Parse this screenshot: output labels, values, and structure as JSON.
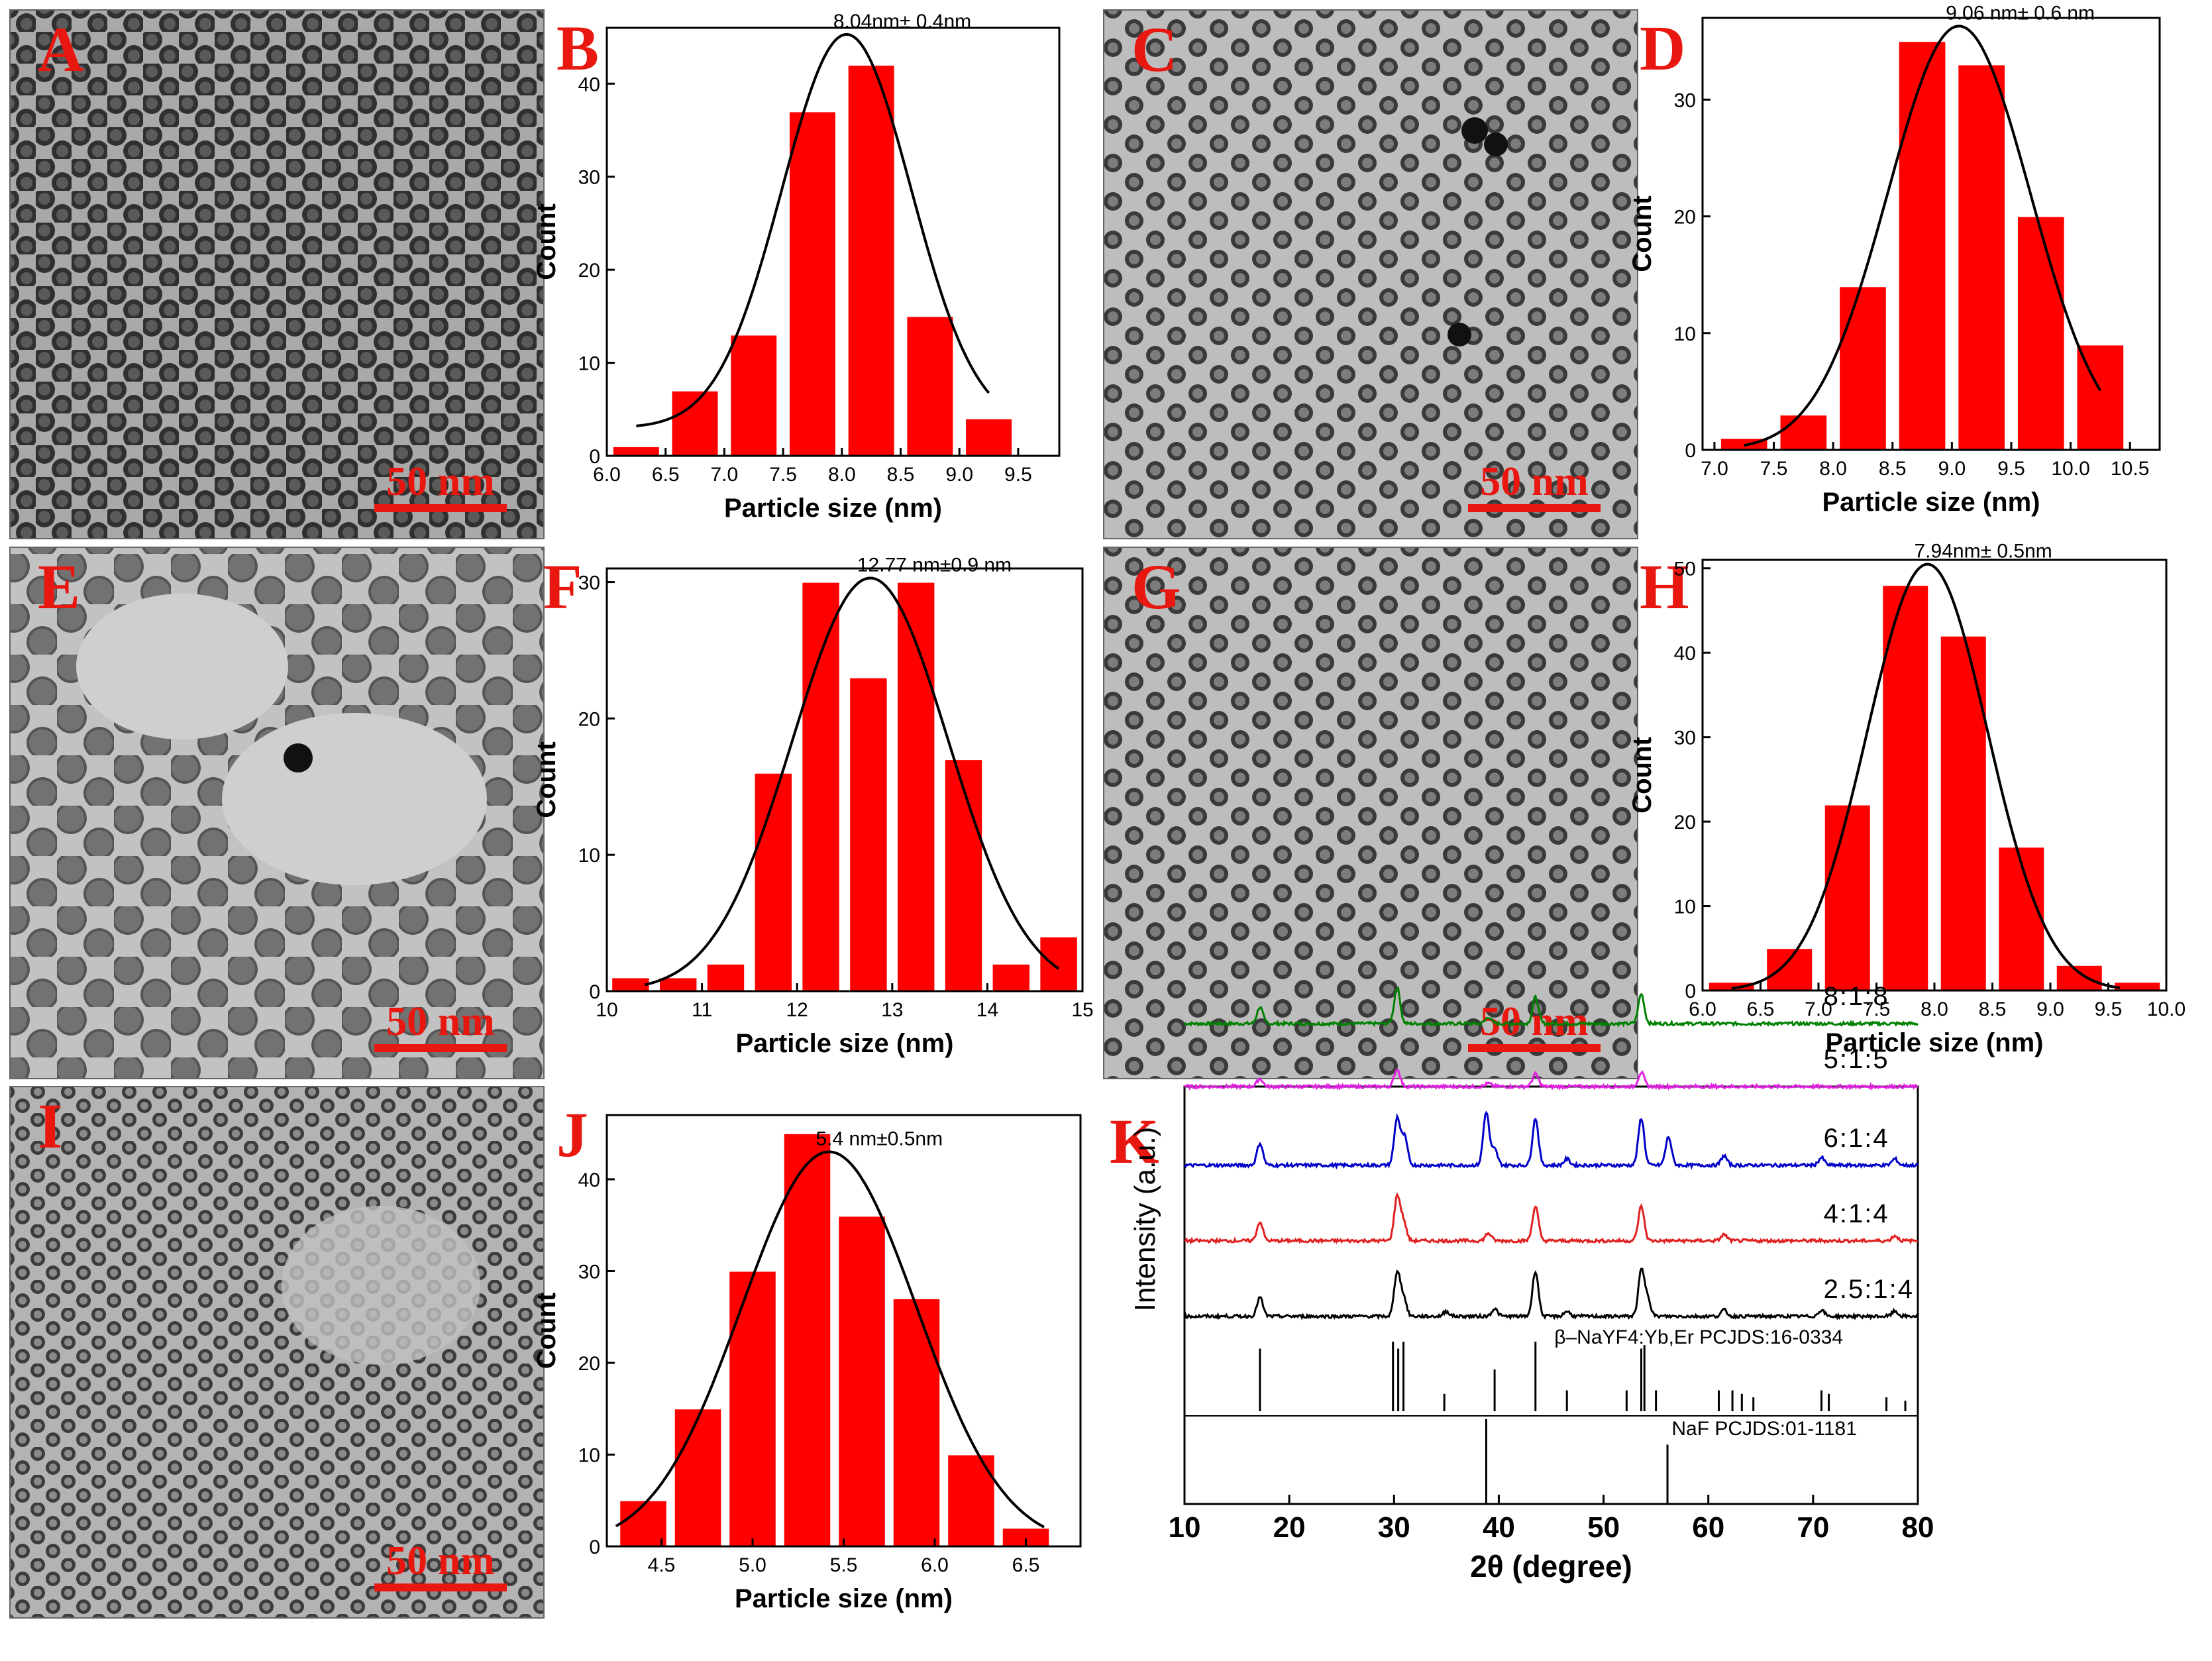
{
  "figure": {
    "tem_panels": [
      {
        "letter": "A",
        "scale_bar": "50 nm",
        "style": "dense"
      },
      {
        "letter": "C",
        "scale_bar": "50 nm",
        "style": "light"
      },
      {
        "letter": "E",
        "scale_bar": "50 nm",
        "style": "large"
      },
      {
        "letter": "G",
        "scale_bar": "50 nm",
        "style": "light"
      },
      {
        "letter": "I",
        "scale_bar": "50 nm",
        "style": "small"
      }
    ]
  },
  "colors": {
    "bar": "#ff0000",
    "fit": "#000000",
    "letter": "#e8170f"
  },
  "chart_data": [
    {
      "panel": "B",
      "type": "bar",
      "xlabel": "Particle size (nm)",
      "ylabel": "Count",
      "annotation": "8.04nm± 0.4nm",
      "xlim": [
        6.0,
        9.85
      ],
      "ylim": [
        0,
        46
      ],
      "xticks": [
        6.0,
        6.5,
        7.0,
        7.5,
        8.0,
        8.5,
        9.0,
        9.5
      ],
      "xtick_labels": [
        "6.0",
        "6.5",
        "7.0",
        "7.5",
        "8.0",
        "8.5",
        "9.0",
        "9.5"
      ],
      "yticks": [
        0,
        10,
        20,
        30,
        40
      ],
      "bin_width": 0.4,
      "bins": [
        6.25,
        6.75,
        7.25,
        7.75,
        8.25,
        8.75,
        9.25
      ],
      "values": [
        1,
        7,
        13,
        37,
        42,
        15,
        4
      ],
      "fit": {
        "type": "gaussian",
        "center": 8.04,
        "peak": 45.3,
        "sigma": 0.55,
        "baseline": 3.0,
        "range": [
          6.25,
          9.25
        ]
      }
    },
    {
      "panel": "D",
      "type": "bar",
      "xlabel": "Particle size (nm)",
      "ylabel": "Count",
      "annotation": "9.06 nm± 0.6 nm",
      "xlim": [
        6.9,
        10.75
      ],
      "ylim": [
        0,
        37
      ],
      "xticks": [
        7.0,
        7.5,
        8.0,
        8.5,
        9.0,
        9.5,
        10.0,
        10.5
      ],
      "xtick_labels": [
        "7.0",
        "7.5",
        "8.0",
        "8.5",
        "9.0",
        "9.5",
        "10.0",
        "10.5"
      ],
      "yticks": [
        0,
        10,
        20,
        30
      ],
      "bin_width": 0.4,
      "bins": [
        7.25,
        7.75,
        8.25,
        8.75,
        9.25,
        9.75,
        10.25
      ],
      "values": [
        1,
        3,
        14,
        35,
        33,
        20,
        9
      ],
      "fit": {
        "type": "gaussian",
        "center": 9.06,
        "peak": 36.3,
        "sigma": 0.6,
        "baseline": 0,
        "range": [
          7.25,
          10.25
        ]
      }
    },
    {
      "panel": "F",
      "type": "bar",
      "xlabel": "Particle size (nm)",
      "ylabel": "Count",
      "annotation": "12.77 nm±0.9 nm",
      "xlim": [
        10,
        15
      ],
      "ylim": [
        0,
        31
      ],
      "xticks": [
        10,
        11,
        12,
        13,
        14,
        15
      ],
      "xtick_labels": [
        "10",
        "11",
        "12",
        "13",
        "14",
        "15"
      ],
      "yticks": [
        0,
        10,
        20,
        30
      ],
      "bin_width": 0.4,
      "bins": [
        10.25,
        10.75,
        11.25,
        11.75,
        12.25,
        12.75,
        13.25,
        13.75,
        14.25,
        14.75
      ],
      "values": [
        1,
        1,
        2,
        16,
        30,
        23,
        30,
        17,
        2,
        4
      ],
      "fit": {
        "type": "gaussian",
        "center": 12.77,
        "peak": 30.3,
        "sigma": 0.82,
        "baseline": 0,
        "range": [
          10.4,
          14.75
        ]
      }
    },
    {
      "panel": "H",
      "type": "bar",
      "xlabel": "Particle size (nm)",
      "ylabel": "Count",
      "annotation": "7.94nm± 0.5nm",
      "xlim": [
        6.0,
        10.0
      ],
      "ylim": [
        0,
        51
      ],
      "xticks": [
        6.0,
        6.5,
        7.0,
        7.5,
        8.0,
        8.5,
        9.0,
        9.5,
        10.0
      ],
      "xtick_labels": [
        "6.0",
        "6.5",
        "7.0",
        "7.5",
        "8.0",
        "8.5",
        "9.0",
        "9.5",
        "10.0"
      ],
      "yticks": [
        0,
        10,
        20,
        30,
        40,
        50
      ],
      "bin_width": 0.4,
      "bins": [
        6.25,
        6.75,
        7.25,
        7.75,
        8.25,
        8.75,
        9.25,
        9.75
      ],
      "values": [
        1,
        5,
        22,
        48,
        42,
        17,
        3,
        1
      ],
      "fit": {
        "type": "gaussian",
        "center": 7.94,
        "peak": 50.5,
        "sigma": 0.52,
        "baseline": 0,
        "range": [
          6.25,
          9.6
        ]
      }
    },
    {
      "panel": "J",
      "type": "bar",
      "xlabel": "Particle size (nm)",
      "ylabel": "Count",
      "annotation": "5.4 nm±0.5nm",
      "xlim": [
        4.2,
        6.8
      ],
      "ylim": [
        0,
        47
      ],
      "xticks": [
        4.5,
        5.0,
        5.5,
        6.0,
        6.5
      ],
      "xtick_labels": [
        "4.5",
        "5.0",
        "5.5",
        "6.0",
        "6.5"
      ],
      "yticks": [
        0,
        10,
        20,
        30,
        40
      ],
      "bin_width": 0.26,
      "bins": [
        4.4,
        4.7,
        5.0,
        5.3,
        5.6,
        5.9,
        6.2,
        6.5
      ],
      "values": [
        5,
        15,
        30,
        45,
        36,
        27,
        10,
        2
      ],
      "fit": {
        "type": "gaussian",
        "center": 5.42,
        "peak": 43,
        "sigma": 0.48,
        "baseline": 0,
        "range": [
          4.25,
          6.6
        ]
      }
    },
    {
      "panel": "K",
      "type": "line",
      "xlabel": "2θ (degree)",
      "ylabel": "Intensity (a.u.)",
      "xlim": [
        10,
        80
      ],
      "xticks": [
        10,
        20,
        30,
        40,
        50,
        60,
        70,
        80
      ],
      "xtick_labels": [
        "10",
        "20",
        "30",
        "40",
        "50",
        "60",
        "70",
        "80"
      ],
      "series": [
        {
          "name": "8:1:8",
          "color": "#008000",
          "offset": 5,
          "scale": 1.05,
          "peaks": [
            [
              17.2,
              0.25
            ],
            [
              30.3,
              0.55
            ],
            [
              39.0,
              0.1
            ],
            [
              43.5,
              0.4
            ],
            [
              53.6,
              0.45
            ]
          ]
        },
        {
          "name": "5:1:5",
          "color": "#e020e0",
          "offset": 4,
          "scale": 0.5,
          "peaks": [
            [
              17.2,
              0.25
            ],
            [
              30.3,
              0.55
            ],
            [
              39.0,
              0.1
            ],
            [
              43.5,
              0.4
            ],
            [
              53.6,
              0.45
            ]
          ]
        },
        {
          "name": "6:1:4",
          "color": "#0000c8",
          "offset": 2.75,
          "scale": 1.0,
          "peaks": [
            [
              17.2,
              0.35
            ],
            [
              30.3,
              0.75
            ],
            [
              31.0,
              0.45
            ],
            [
              38.8,
              0.85
            ],
            [
              39.6,
              0.25
            ],
            [
              43.5,
              0.75
            ],
            [
              46.5,
              0.1
            ],
            [
              53.6,
              0.75
            ],
            [
              56.2,
              0.45
            ],
            [
              61.5,
              0.15
            ],
            [
              70.8,
              0.12
            ],
            [
              77.8,
              0.1
            ]
          ]
        },
        {
          "name": "4:1:4",
          "color": "#e02020",
          "offset": 1.55,
          "scale": 1.0,
          "peaks": [
            [
              17.2,
              0.3
            ],
            [
              30.3,
              0.7
            ],
            [
              30.9,
              0.3
            ],
            [
              39.0,
              0.12
            ],
            [
              43.5,
              0.55
            ],
            [
              53.6,
              0.55
            ],
            [
              61.5,
              0.1
            ],
            [
              77.8,
              0.08
            ]
          ]
        },
        {
          "name": "2.5:1:4",
          "color": "#000000",
          "offset": 0.35,
          "scale": 1.0,
          "peaks": [
            [
              17.2,
              0.3
            ],
            [
              30.3,
              0.7
            ],
            [
              30.9,
              0.3
            ],
            [
              35.0,
              0.08
            ],
            [
              39.6,
              0.12
            ],
            [
              43.5,
              0.72
            ],
            [
              46.5,
              0.08
            ],
            [
              53.6,
              0.72
            ],
            [
              54.2,
              0.3
            ],
            [
              61.5,
              0.1
            ],
            [
              70.8,
              0.1
            ],
            [
              77.8,
              0.08
            ]
          ]
        }
      ],
      "references": [
        {
          "name": "β–NaYF4:Yb,Er PCJDS:16-0334",
          "lines": [
            [
              17.2,
              0.9
            ],
            [
              29.9,
              1.0
            ],
            [
              30.4,
              0.9
            ],
            [
              30.9,
              1.0
            ],
            [
              34.8,
              0.25
            ],
            [
              39.6,
              0.6
            ],
            [
              43.5,
              1.0
            ],
            [
              46.5,
              0.3
            ],
            [
              52.2,
              0.3
            ],
            [
              53.6,
              0.9
            ],
            [
              53.9,
              0.95
            ],
            [
              55.0,
              0.3
            ],
            [
              61.0,
              0.3
            ],
            [
              62.3,
              0.3
            ],
            [
              63.2,
              0.25
            ],
            [
              64.3,
              0.2
            ],
            [
              70.8,
              0.3
            ],
            [
              71.5,
              0.25
            ],
            [
              77.0,
              0.2
            ],
            [
              78.8,
              0.15
            ]
          ]
        },
        {
          "name": "NaF PCJDS:01-1181",
          "lines": [
            [
              38.8,
              1.0
            ],
            [
              56.1,
              0.7
            ]
          ]
        }
      ]
    }
  ]
}
